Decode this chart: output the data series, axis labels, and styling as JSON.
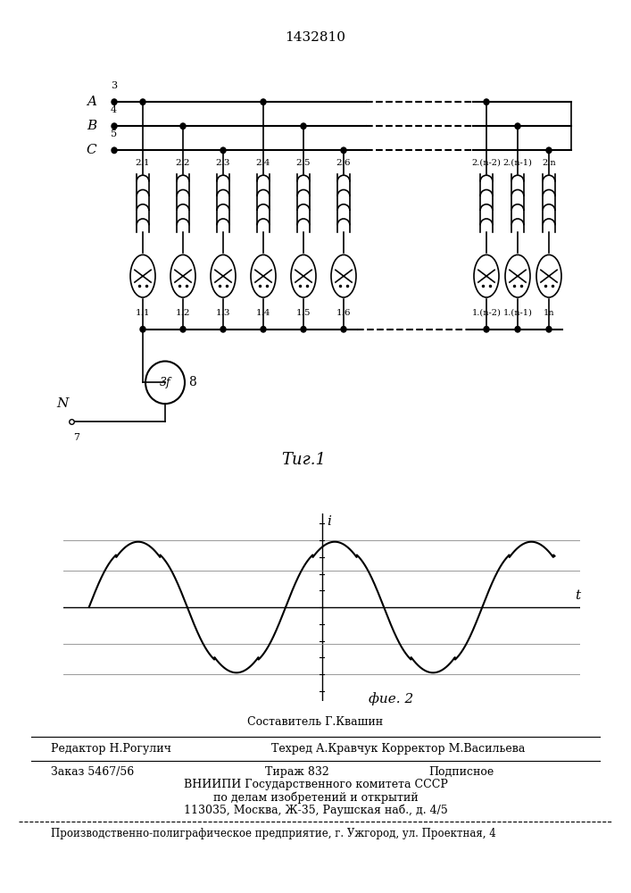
{
  "title": "1432810",
  "fig1_label": "Τиг.1",
  "fig2_label": "фие. 2",
  "phase_labels": [
    "A",
    "B",
    "C"
  ],
  "phase_numbers": [
    "3",
    "4",
    "5"
  ],
  "inductor_labels_top": [
    "2.1",
    "2.2",
    "2.3",
    "2.4",
    "2.5",
    "2.6"
  ],
  "inductor_labels_end": [
    "2.(n-2)",
    "2.(n-1)",
    "2.n"
  ],
  "lamp_labels_top": [
    "1.1",
    "1.2",
    "1.3",
    "1.4",
    "1.5",
    "1.6"
  ],
  "lamp_labels_end": [
    "1.(n-2)",
    "1.(n-1)",
    "1n"
  ],
  "neutral_label": "N",
  "neutral_number": "7",
  "motor_label": "3f",
  "motor_number": "8",
  "composer": "Составитель Г.Квашин",
  "editor": "Редактор Н.Рогулич",
  "techred": "Техред А.Кравчук",
  "corrector": "Корректор М.Васильева",
  "order": "Заказ 5467/56",
  "tirazh": "Тираж 832",
  "podpisnoe": "Подписное",
  "vniipи_line1": "ВНИИПИ Государственного комитета СССР",
  "vniipи_line2": "по делам изобретений и открытий",
  "vniipи_line3": "113035, Москва, Ж-35, Раушская наб., д. 4/5",
  "production": "Производственно-полиграфическое предприятие, г. Ужгород, ул. Проектная, 4"
}
